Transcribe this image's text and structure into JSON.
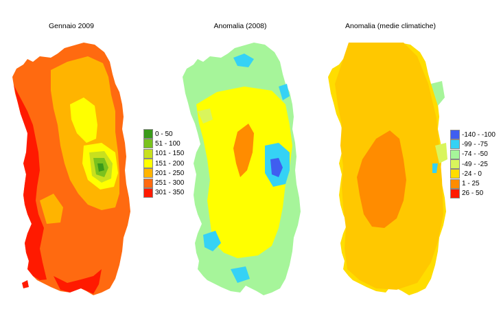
{
  "titles": {
    "map1": "Gennaio 2009",
    "map2": "Anomalia (2008)",
    "map3": "Anomalia (medie climatiche)"
  },
  "legend_precip": [
    {
      "label": "0 - 50",
      "color": "#3a9a1a"
    },
    {
      "label": "51 - 100",
      "color": "#7ac21e"
    },
    {
      "label": "101 - 150",
      "color": "#c8e01e"
    },
    {
      "label": "151 - 200",
      "color": "#ffff00"
    },
    {
      "label": "201 - 250",
      "color": "#ffb400"
    },
    {
      "label": "251 - 300",
      "color": "#ff6a10"
    },
    {
      "label": "301 - 350",
      "color": "#ff1a00"
    }
  ],
  "legend_anomaly": [
    {
      "label": "-140 - -100",
      "color": "#3f5ef0"
    },
    {
      "label": "-99 - -75",
      "color": "#35d2f5"
    },
    {
      "label": "-74 - -50",
      "color": "#a6f59a"
    },
    {
      "label": "-49 - -25",
      "color": "#d9f55c"
    },
    {
      "label": "-24 - 0",
      "color": "#ffdd00"
    },
    {
      "label": "1 - 25",
      "color": "#ff8c00"
    },
    {
      "label": "26 - 50",
      "color": "#ff1a00"
    }
  ]
}
